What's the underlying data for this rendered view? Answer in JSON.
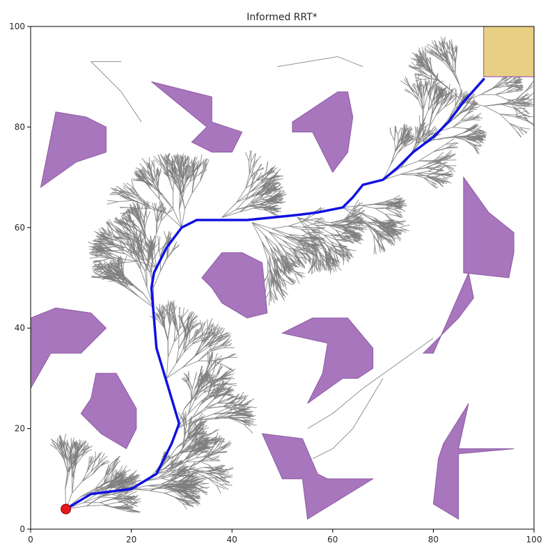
{
  "chart_data": {
    "type": "scatter",
    "subtype": "path-planning-tree",
    "title": "Informed RRT*",
    "xlabel": "",
    "ylabel": "",
    "xlim": [
      0,
      100
    ],
    "ylim": [
      0,
      100
    ],
    "xticks": [
      0,
      20,
      40,
      60,
      80,
      100
    ],
    "yticks": [
      0,
      20,
      40,
      60,
      80,
      100
    ],
    "grid": false,
    "legend": "none",
    "colors": {
      "obstacle_fill": "#a776bd",
      "obstacle_edge": "#8e5aa6",
      "goal_fill": "#e9cf84",
      "goal_edge": "#8e44ad",
      "tree_edge": "#7f7f7f",
      "path": "#1010e0",
      "start_fill": "#e31a1c",
      "start_edge": "#8b0000"
    },
    "start": [
      7,
      4
    ],
    "goal_region": {
      "x": [
        90,
        100
      ],
      "y": [
        90,
        100
      ]
    },
    "path": [
      [
        7,
        4
      ],
      [
        12,
        7
      ],
      [
        20,
        8
      ],
      [
        25,
        11
      ],
      [
        28,
        17
      ],
      [
        29.5,
        21
      ],
      [
        28,
        26
      ],
      [
        26.5,
        31
      ],
      [
        25,
        36
      ],
      [
        24.5,
        42
      ],
      [
        24,
        48
      ],
      [
        24.5,
        51
      ],
      [
        27,
        56
      ],
      [
        30,
        60
      ],
      [
        33,
        61.5
      ],
      [
        38,
        61.5
      ],
      [
        43,
        61.5
      ],
      [
        48,
        62
      ],
      [
        53,
        62.5
      ],
      [
        57,
        63
      ],
      [
        62,
        64
      ],
      [
        64,
        66
      ],
      [
        66,
        68.5
      ],
      [
        70,
        69.5
      ],
      [
        73,
        72
      ],
      [
        76,
        75
      ],
      [
        80,
        78
      ],
      [
        83,
        81
      ],
      [
        86,
        85
      ],
      [
        90,
        89.5
      ]
    ],
    "obstacles": [
      [
        [
          5,
          83
        ],
        [
          11,
          82
        ],
        [
          15,
          80
        ],
        [
          15,
          75
        ],
        [
          9,
          73
        ],
        [
          2,
          68
        ]
      ],
      [
        [
          24,
          89
        ],
        [
          36,
          86
        ],
        [
          36,
          81
        ],
        [
          42,
          79
        ],
        [
          40,
          75
        ],
        [
          36,
          75
        ],
        [
          32,
          77
        ],
        [
          35,
          80
        ]
      ],
      [
        [
          52,
          81
        ],
        [
          61,
          87
        ],
        [
          63,
          87
        ],
        [
          64,
          82
        ],
        [
          63,
          75
        ],
        [
          60,
          71
        ],
        [
          56,
          79
        ],
        [
          52,
          79
        ]
      ],
      [
        [
          86,
          70
        ],
        [
          91,
          63
        ],
        [
          96,
          59
        ],
        [
          96,
          55
        ],
        [
          95,
          50
        ],
        [
          86,
          51
        ]
      ],
      [
        [
          38,
          55
        ],
        [
          42,
          55
        ],
        [
          46,
          53
        ],
        [
          47,
          43
        ],
        [
          43,
          42
        ],
        [
          38,
          45
        ],
        [
          36,
          48
        ],
        [
          34,
          50
        ]
      ],
      [
        [
          0,
          42
        ],
        [
          5,
          44
        ],
        [
          12,
          43
        ],
        [
          15,
          40
        ],
        [
          10,
          35
        ],
        [
          4,
          35
        ],
        [
          0,
          28
        ]
      ],
      [
        [
          56,
          42
        ],
        [
          63,
          42
        ],
        [
          68,
          36
        ],
        [
          68,
          32
        ],
        [
          65,
          30
        ],
        [
          62,
          30
        ],
        [
          55,
          25
        ],
        [
          58,
          31
        ],
        [
          59,
          37
        ],
        [
          50,
          39
        ]
      ],
      [
        [
          13,
          31
        ],
        [
          17,
          31
        ],
        [
          21,
          24
        ],
        [
          21,
          20
        ],
        [
          19,
          16
        ],
        [
          14,
          19
        ],
        [
          10,
          23
        ],
        [
          12,
          26
        ]
      ],
      [
        [
          46,
          19
        ],
        [
          54,
          18
        ],
        [
          57,
          11
        ],
        [
          59,
          10
        ],
        [
          68,
          10
        ],
        [
          55,
          2
        ],
        [
          54,
          10
        ],
        [
          50,
          10
        ]
      ],
      [
        [
          80,
          35
        ],
        [
          87,
          51
        ],
        [
          88,
          46
        ],
        [
          85,
          42
        ],
        [
          78,
          35
        ]
      ],
      [
        [
          82,
          17
        ],
        [
          87,
          25
        ],
        [
          85,
          16
        ],
        [
          96,
          16
        ],
        [
          85,
          15
        ],
        [
          85,
          2
        ],
        [
          80,
          5
        ],
        [
          81,
          14
        ]
      ]
    ]
  }
}
